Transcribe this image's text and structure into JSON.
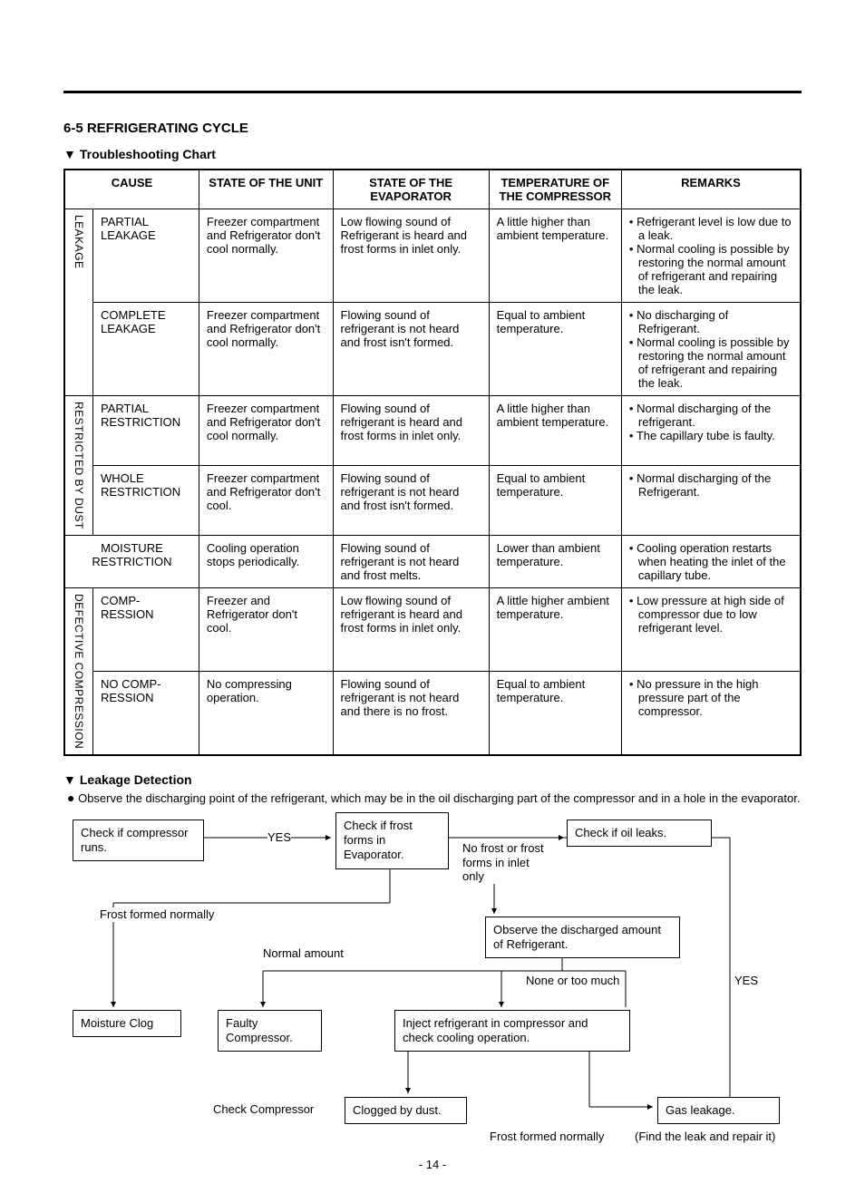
{
  "sectionTitle": "6-5 REFRIGERATING CYCLE",
  "chartTitle": "Troubleshooting Chart",
  "tri": "▼",
  "headers": {
    "cause": "CAUSE",
    "state_unit": "STATE OF THE UNIT",
    "state_evap": "STATE OF THE EVAPORATOR",
    "temp_comp": "TEMPERATURE OF THE COMPRESSOR",
    "remarks": "REMARKS"
  },
  "groups": {
    "leakage": "LEAKAGE",
    "restricted": "RESTRICTED BY DUST",
    "defective": "DEFECTIVE COMPRESSION"
  },
  "rows": [
    {
      "sub": "PARTIAL LEAKAGE",
      "unit": "Freezer compartment and Refrigerator don't cool normally.",
      "evap": "Low flowing sound of Refrigerant is heard and frost forms in inlet only.",
      "temp": "A little higher than ambient temperature.",
      "remarks": [
        "Refrigerant level is low due to a leak.",
        "Normal cooling is possible by restoring the normal amount of refrigerant and repairing the leak."
      ]
    },
    {
      "sub": "COMPLETE LEAKAGE",
      "unit": "Freezer compartment and Refrigerator don't cool normally.",
      "evap": "Flowing sound of refrigerant is not heard and frost isn't formed.",
      "temp": "Equal to ambient temperature.",
      "remarks": [
        "No discharging of Refrigerant.",
        "Normal cooling is possible by restoring the normal amount of refrigerant and repairing the leak."
      ]
    },
    {
      "sub": "PARTIAL RESTRICTION",
      "unit": "Freezer compartment and Refrigerator don't cool normally.",
      "evap": "Flowing sound of refrigerant is heard and frost forms in inlet only.",
      "temp": "A little higher than ambient temperature.",
      "remarks": [
        "Normal discharging of the refrigerant.",
        "The capillary tube is faulty."
      ]
    },
    {
      "sub": "WHOLE RESTRICTION",
      "unit": "Freezer compartment and Refrigerator don't cool.",
      "evap": "Flowing sound of refrigerant is not heard and frost isn't formed.",
      "temp": "Equal to ambient temperature.",
      "remarks": [
        "Normal discharging of the Refrigerant."
      ]
    },
    {
      "sub": "MOISTURE RESTRICTION",
      "unit": "Cooling operation stops periodically.",
      "evap": "Flowing sound of refrigerant is not heard and frost melts.",
      "temp": "Lower than ambient temperature.",
      "remarks": [
        "Cooling operation restarts when heating the inlet of the capillary tube."
      ]
    },
    {
      "sub": "COMP-RESSION",
      "unit": "Freezer and Refrigerator don't cool.",
      "evap": "Low flowing sound of refrigerant is heard and frost forms in inlet only.",
      "temp": "A little higher ambient temperature.",
      "remarks": [
        "Low pressure at high side of compressor due to low refrigerant level."
      ]
    },
    {
      "sub": "NO COMP-RESSION",
      "unit": "No compressing operation.",
      "evap": "Flowing sound of refrigerant is not heard and there is no frost.",
      "temp": "Equal to ambient temperature.",
      "remarks": [
        "No pressure in the high pressure part of the compressor."
      ]
    }
  ],
  "leakage": {
    "title": "Leakage Detection",
    "note": "Observe the discharging point of the refrigerant, which may be in the oil discharging part of the compressor and in a hole in the evaporator.",
    "boxes": {
      "b1": "Check if compressor runs.",
      "b2": "Check if frost forms in Evaporator.",
      "b3": "Check if oil leaks.",
      "b4": "Observe the discharged amount of Refrigerant.",
      "b5": "Moisture Clog",
      "b6": "Faulty Compressor.",
      "b7": "Inject refrigerant in compressor and check cooling operation.",
      "b8": "Clogged by dust.",
      "b9": "Gas leakage."
    },
    "labels": {
      "yes1": "YES",
      "yes2": "YES",
      "nofrost": "No frost or frost forms in inlet only",
      "frostnorm1": "Frost formed normally",
      "normalamt": "Normal amount",
      "noneortoo": "None or too much",
      "checkcomp": "Check Compressor",
      "frostnorm2": "Frost formed normally",
      "findleak": "(Find the leak and repair it)"
    }
  },
  "pageNum": "- 14 -"
}
